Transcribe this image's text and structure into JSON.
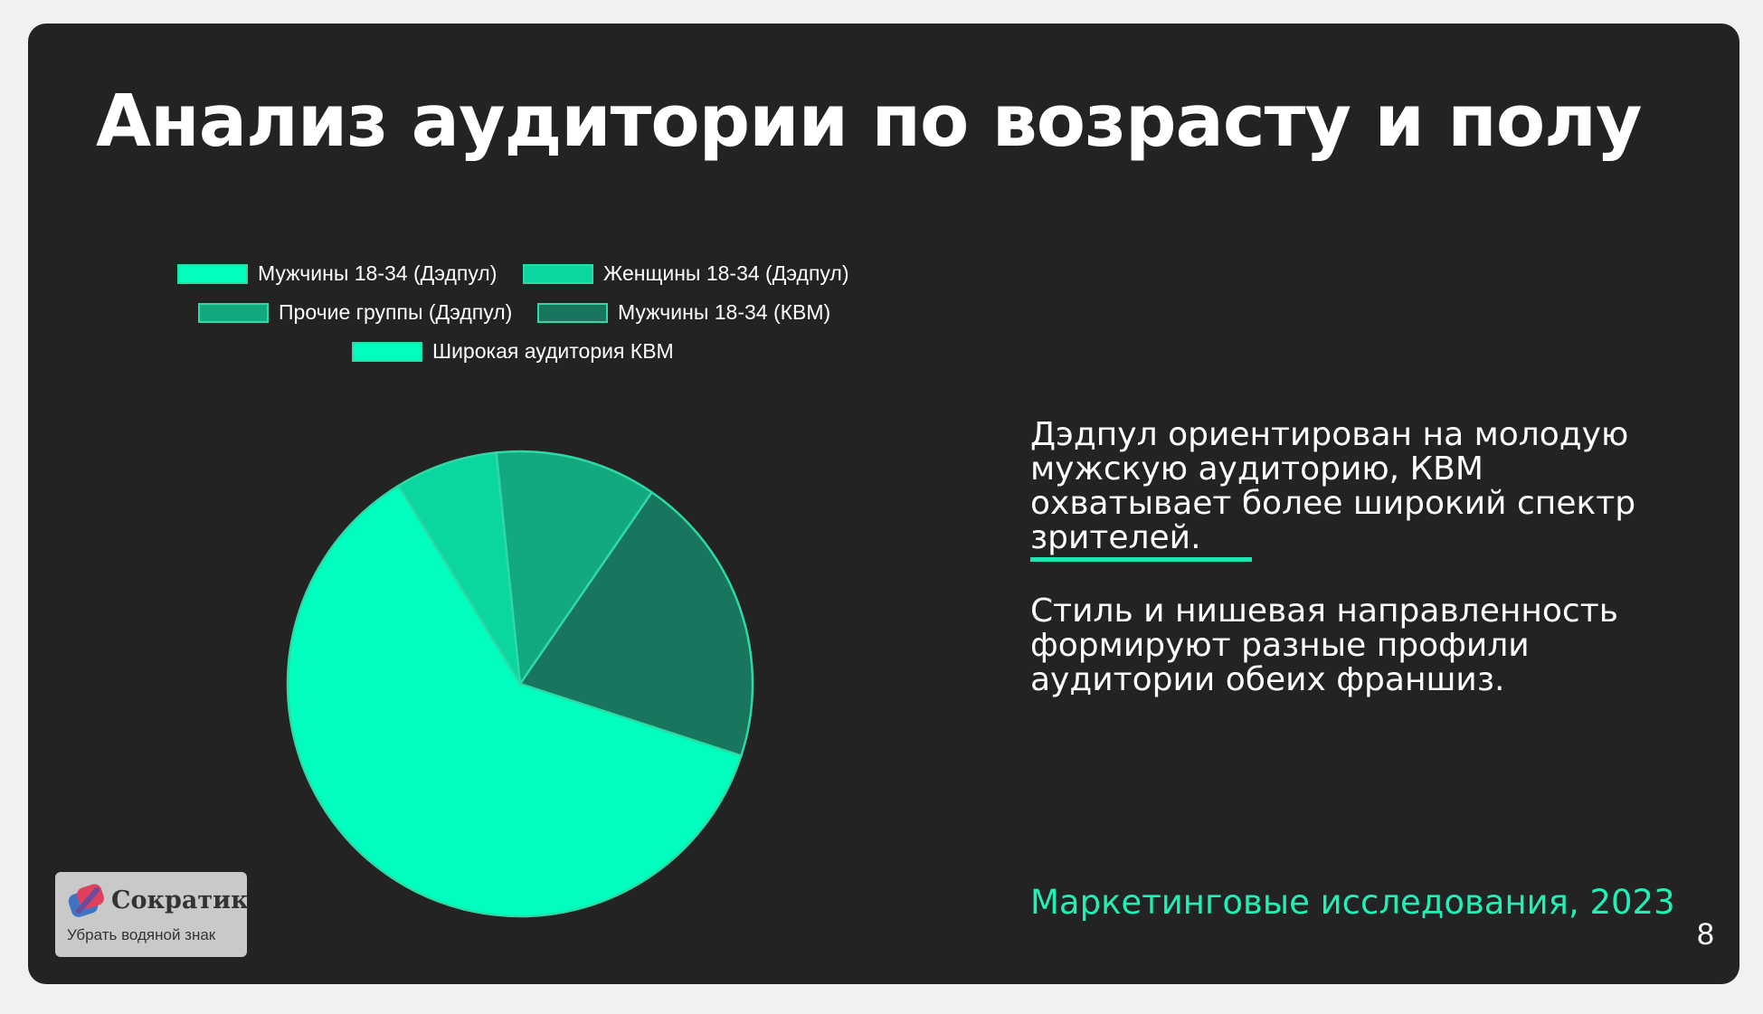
{
  "slide": {
    "title": "Анализ аудитории по возрасту и полу",
    "paragraph_1": "Дэдпул ориентирован на молодую мужскую аудиторию, КВМ охватывает более широкий спектр зрителей.",
    "paragraph_2": "Стиль и нишевая направленность формируют разные профили аудитории обеих франшиз.",
    "source": "Маркетинговые исследования, 2023",
    "page_number": "8",
    "accent_color": "#1ee6b0"
  },
  "watermark": {
    "name": "Сократик",
    "action": "Убрать водяной знак"
  },
  "chart_data": {
    "type": "pie",
    "title": "",
    "legend_position": "top",
    "categories": [
      "Мужчины 18-34 (Дэдпул)",
      "Женщины 18-34 (Дэдпул)",
      "Прочие группы (Дэдпул)",
      "Мужчины 18-34 (КВМ)",
      "Широкая аудитория КВМ"
    ],
    "values": [
      60,
      7,
      11,
      20,
      0
    ],
    "colors": [
      "#00ffbf",
      "#0bd6a0",
      "#12a880",
      "#18765f",
      "#00ffbf"
    ]
  }
}
